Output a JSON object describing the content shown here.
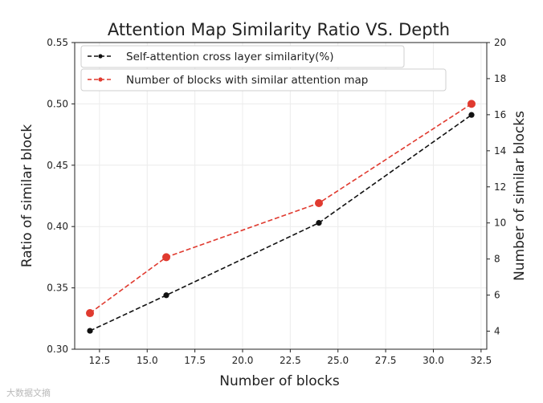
{
  "chart_data": {
    "type": "line",
    "title": "Attention Map Similarity Ratio VS. Depth",
    "xlabel": "Number of blocks",
    "ylabel_left": "Ratio of similar block",
    "ylabel_right": "Number of similar blocks",
    "x": [
      12,
      16,
      24,
      32
    ],
    "xlim": [
      11.2,
      32.8
    ],
    "ylim_left": [
      0.3,
      0.55
    ],
    "ylim_right": [
      3,
      20
    ],
    "xticks": [
      "12.5",
      "15.0",
      "17.5",
      "20.0",
      "22.5",
      "25.0",
      "27.5",
      "30.0",
      "32.5"
    ],
    "yticks_left": [
      "0.30",
      "0.35",
      "0.40",
      "0.45",
      "0.50",
      "0.55"
    ],
    "yticks_right": [
      "4",
      "6",
      "8",
      "10",
      "12",
      "14",
      "16",
      "18",
      "20"
    ],
    "grid": true,
    "legend_position": "top-left",
    "series": [
      {
        "name": "Self-attention cross layer similarity(%)",
        "axis": "left",
        "color": "#111111",
        "values": [
          0.315,
          0.344,
          0.403,
          0.491
        ]
      },
      {
        "name": "Number of blocks with similar attention map",
        "axis": "right",
        "color": "#e03a2f",
        "values": [
          5.0,
          8.1,
          11.1,
          16.6
        ]
      }
    ]
  },
  "watermark": "大数据文摘"
}
